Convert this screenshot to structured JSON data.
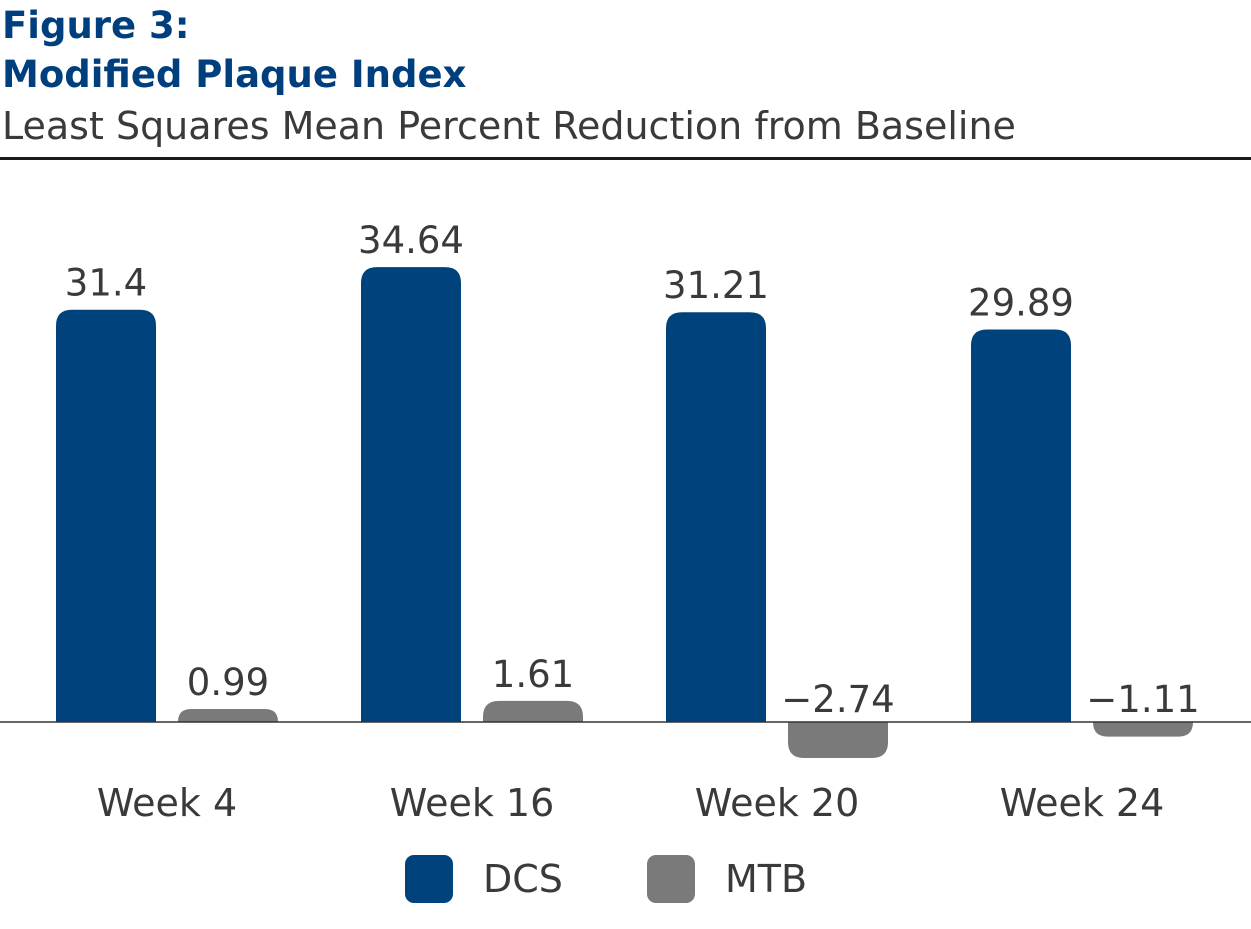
{
  "header": {
    "figure_label": "Figure 3:",
    "title": "Modified Plaque Index",
    "subtitle": "Least Squares Mean Percent Reduction from Baseline"
  },
  "colors": {
    "dcs": "#00437c",
    "mtb": "#7a7a7a",
    "heading": "#003f7d",
    "text": "#3a3a3a"
  },
  "chart_data": {
    "type": "bar",
    "title": "Modified Plaque Index",
    "subtitle": "Least Squares Mean Percent Reduction from Baseline",
    "xlabel": "",
    "ylabel": "",
    "categories": [
      "Week 4",
      "Week 16",
      "Week 20",
      "Week 24"
    ],
    "series": [
      {
        "name": "DCS",
        "values": [
          31.4,
          34.64,
          31.21,
          29.89
        ],
        "labels": [
          "31.4",
          "34.64",
          "31.21",
          "29.89"
        ]
      },
      {
        "name": "MTB",
        "values": [
          0.99,
          1.61,
          -2.74,
          -1.11
        ],
        "labels": [
          "0.99",
          "1.61",
          "−2.74",
          "−1.11"
        ]
      }
    ],
    "grid": false,
    "legend": "bottom",
    "ylim": [
      -4,
      40
    ]
  }
}
